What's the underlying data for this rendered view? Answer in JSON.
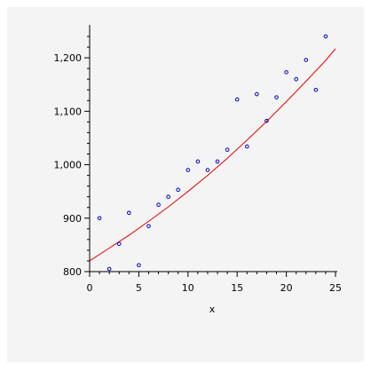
{
  "chart_data": {
    "type": "scatter",
    "title": "",
    "xlabel": "x",
    "ylabel": "",
    "xlim": [
      0,
      25
    ],
    "ylim": [
      800,
      1255
    ],
    "x_ticks": [
      0,
      5,
      10,
      15,
      20,
      25
    ],
    "x_tick_labels": [
      "0",
      "5",
      "10",
      "15",
      "20",
      "25"
    ],
    "y_ticks": [
      800,
      900,
      1000,
      1100,
      1200
    ],
    "y_tick_labels": [
      "800",
      "900",
      "1,000",
      "1,100",
      "1,200"
    ],
    "grid": false,
    "legend": "none",
    "series": [
      {
        "kind": "points",
        "color": "#0000cc",
        "x": [
          1,
          2,
          3,
          4,
          5,
          6,
          7,
          8,
          9,
          10,
          11,
          12,
          13,
          14,
          15,
          16,
          17,
          18,
          19,
          20,
          21,
          22,
          23,
          24
        ],
        "y": [
          900,
          805,
          852,
          910,
          812,
          885,
          925,
          940,
          953,
          990,
          1006,
          990,
          1006,
          1028,
          1122,
          1034,
          1132,
          1082,
          1126,
          1173,
          1160,
          1196,
          1140,
          1240
        ]
      },
      {
        "kind": "fit-curve",
        "color": "#ee0000",
        "x": [
          0,
          2,
          4,
          6,
          8,
          10,
          12,
          14,
          16,
          18,
          20,
          22,
          24,
          25
        ],
        "y": [
          820,
          844,
          868,
          894,
          921,
          950,
          980,
          1012,
          1046,
          1081,
          1118,
          1156,
          1195,
          1217
        ]
      }
    ]
  }
}
